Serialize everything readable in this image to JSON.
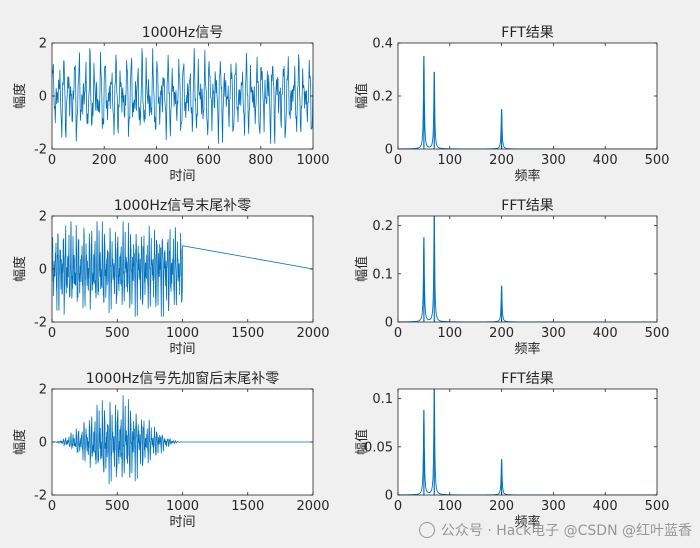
{
  "chart_data": [
    {
      "type": "line",
      "title": "1000Hz信号",
      "xlabel": "时间",
      "ylabel": "幅度",
      "xlim": [
        0,
        1000
      ],
      "ylim": [
        -2,
        2
      ],
      "xticks": [
        0,
        200,
        400,
        600,
        800,
        1000
      ],
      "yticks": [
        -2,
        0,
        2
      ],
      "grid": false,
      "series": [
        {
          "signal": {
            "active_range": [
              0,
              1000
            ],
            "amplitude": 1.8,
            "window": "none"
          }
        }
      ]
    },
    {
      "type": "line",
      "title": "FFT结果",
      "xlabel": "频率",
      "ylabel": "幅值",
      "xlim": [
        0,
        500
      ],
      "ylim": [
        0,
        0.4
      ],
      "xticks": [
        0,
        100,
        200,
        300,
        400,
        500
      ],
      "yticks": [
        0,
        0.2,
        0.4
      ],
      "grid": false,
      "series": [
        {
          "peaks": [
            {
              "x": 50,
              "y": 0.35
            },
            {
              "x": 70,
              "y": 0.29
            },
            {
              "x": 200,
              "y": 0.15
            }
          ]
        }
      ]
    },
    {
      "type": "line",
      "title": "1000Hz信号末尾补零",
      "xlabel": "时间",
      "ylabel": "幅度",
      "xlim": [
        0,
        2000
      ],
      "ylim": [
        -2,
        2
      ],
      "xticks": [
        0,
        500,
        1000,
        1500,
        2000
      ],
      "yticks": [
        -2,
        0,
        2
      ],
      "grid": false,
      "series": [
        {
          "signal": {
            "active_range": [
              0,
              1000
            ],
            "amplitude": 1.8,
            "window": "none",
            "zero_padded_to": 2000
          }
        }
      ]
    },
    {
      "type": "line",
      "title": "FFT结果",
      "xlabel": "频率",
      "ylabel": "幅值",
      "xlim": [
        0,
        500
      ],
      "ylim": [
        0,
        0.22
      ],
      "xticks": [
        0,
        100,
        200,
        300,
        400,
        500
      ],
      "yticks": [
        0,
        0.1,
        0.2
      ],
      "grid": false,
      "series": [
        {
          "peaks": [
            {
              "x": 50,
              "y": 0.175
            },
            {
              "x": 70,
              "y": 0.22
            },
            {
              "x": 200,
              "y": 0.075
            }
          ]
        }
      ]
    },
    {
      "type": "line",
      "title": "1000Hz信号先加窗后末尾补零",
      "xlabel": "时间",
      "ylabel": "幅度",
      "xlim": [
        0,
        2000
      ],
      "ylim": [
        -2,
        2
      ],
      "xticks": [
        0,
        500,
        1000,
        1500,
        2000
      ],
      "yticks": [
        -2,
        0,
        2
      ],
      "grid": false,
      "series": [
        {
          "signal": {
            "active_range": [
              0,
              1000
            ],
            "amplitude": 1.8,
            "window": "hann",
            "zero_padded_to": 2000
          }
        }
      ]
    },
    {
      "type": "line",
      "title": "FFT结果",
      "xlabel": "频率",
      "ylabel": "幅值",
      "xlim": [
        0,
        500
      ],
      "ylim": [
        0,
        0.11
      ],
      "xticks": [
        0,
        100,
        200,
        300,
        400,
        500
      ],
      "yticks": [
        0,
        0.05,
        0.1
      ],
      "grid": false,
      "series": [
        {
          "peaks": [
            {
              "x": 50,
              "y": 0.088
            },
            {
              "x": 70,
              "y": 0.11
            },
            {
              "x": 200,
              "y": 0.037
            }
          ]
        }
      ]
    }
  ],
  "watermark": {
    "text": "公众号 · Hack电子  @CSDN @红叶蓝香"
  },
  "colors": {
    "line": "#0072BD",
    "axes": "#262626",
    "text": "#262626",
    "plot_bg": "#ffffff",
    "figure_bg": "#f0f0f0"
  }
}
